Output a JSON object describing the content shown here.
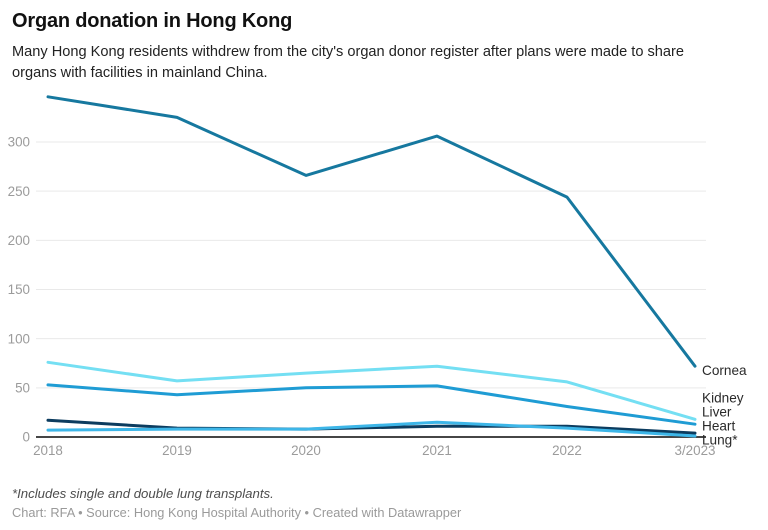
{
  "header": {
    "title": "Organ donation in Hong Kong",
    "description": "Many Hong Kong residents withdrew from the city's organ donor register after plans were made to share organs with facilities in mainland China."
  },
  "footer": {
    "footnote": "*Includes single and double lung transplants.",
    "credit": "Chart: RFA • Source: Hong Kong Hospital Authority • Created with Datawrapper"
  },
  "chart_data": {
    "type": "line",
    "title": "Organ donation in Hong Kong",
    "categories": [
      "2018",
      "2019",
      "2020",
      "2021",
      "2022",
      "3/2023"
    ],
    "series": [
      {
        "name": "Cornea",
        "values": [
          346,
          325,
          266,
          306,
          244,
          72
        ],
        "color": "#16789f"
      },
      {
        "name": "Kidney",
        "values": [
          76,
          57,
          65,
          72,
          56,
          18
        ],
        "color": "#74dff3"
      },
      {
        "name": "Liver",
        "values": [
          53,
          43,
          50,
          52,
          31,
          13
        ],
        "color": "#1f9cd4"
      },
      {
        "name": "Heart",
        "values": [
          17,
          9,
          8,
          11,
          11,
          4
        ],
        "color": "#0c3c5f"
      },
      {
        "name": "Lung*",
        "values": [
          7,
          8,
          8,
          15,
          9,
          1
        ],
        "color": "#3db6e8"
      }
    ],
    "xlabel": "",
    "ylabel": "",
    "yticks": [
      0,
      50,
      100,
      150,
      200,
      250,
      300
    ],
    "ylim": [
      0,
      353
    ],
    "grid": "horizontal",
    "legend_position": "right-direct-labels",
    "colors": {
      "gridline": "#e9e9e9",
      "axis_line": "#2b2b2b",
      "tick_label": "#9b9b9b",
      "series_label": "#2a2a2a"
    }
  }
}
